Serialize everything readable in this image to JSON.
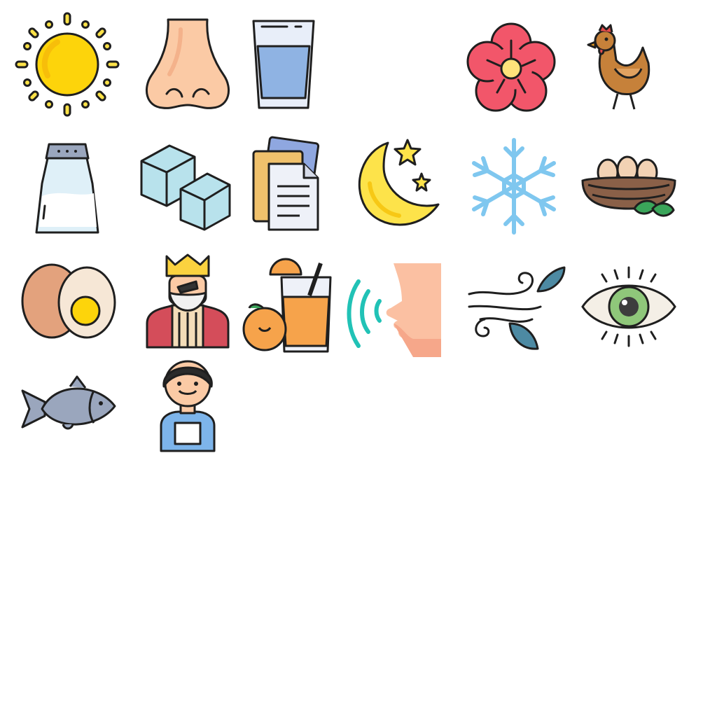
{
  "icons": [
    {
      "row": 1,
      "col": 1,
      "name": "sun-icon"
    },
    {
      "row": 1,
      "col": 2,
      "name": "nose-icon"
    },
    {
      "row": 1,
      "col": 3,
      "name": "water-glass-icon"
    },
    {
      "row": 1,
      "col": 5,
      "name": "flower-icon"
    },
    {
      "row": 1,
      "col": 6,
      "name": "rooster-icon"
    },
    {
      "row": 2,
      "col": 1,
      "name": "salt-shaker-icon"
    },
    {
      "row": 2,
      "col": 2,
      "name": "ice-cubes-icon"
    },
    {
      "row": 2,
      "col": 3,
      "name": "documents-icon"
    },
    {
      "row": 2,
      "col": 4,
      "name": "moon-stars-icon"
    },
    {
      "row": 2,
      "col": 5,
      "name": "snowflake-icon"
    },
    {
      "row": 2,
      "col": 6,
      "name": "bird-nest-eggs-icon"
    },
    {
      "row": 3,
      "col": 1,
      "name": "eggs-icon"
    },
    {
      "row": 3,
      "col": 2,
      "name": "king-icon"
    },
    {
      "row": 3,
      "col": 3,
      "name": "orange-juice-icon"
    },
    {
      "row": 3,
      "col": 4,
      "name": "speaking-face-icon"
    },
    {
      "row": 3,
      "col": 5,
      "name": "wind-leaves-icon"
    },
    {
      "row": 3,
      "col": 6,
      "name": "eye-icon"
    },
    {
      "row": 4,
      "col": 1,
      "name": "fish-icon"
    },
    {
      "row": 4,
      "col": 2,
      "name": "boy-icon"
    }
  ],
  "colors": {
    "outline": "#1f1f1f",
    "sun": "#fdd40b",
    "skin": "#fbcaa5",
    "water": "#8fb3e3",
    "flower": "#f2566a",
    "ice": "#b8e2ec",
    "moon": "#fde34a",
    "snow": "#7fc7ef",
    "nest": "#8a6048",
    "egg_shell": "#f2d2b4",
    "juice": "#f6a34b",
    "fish": "#9aa6bd",
    "shirt": "#7db4ea"
  }
}
